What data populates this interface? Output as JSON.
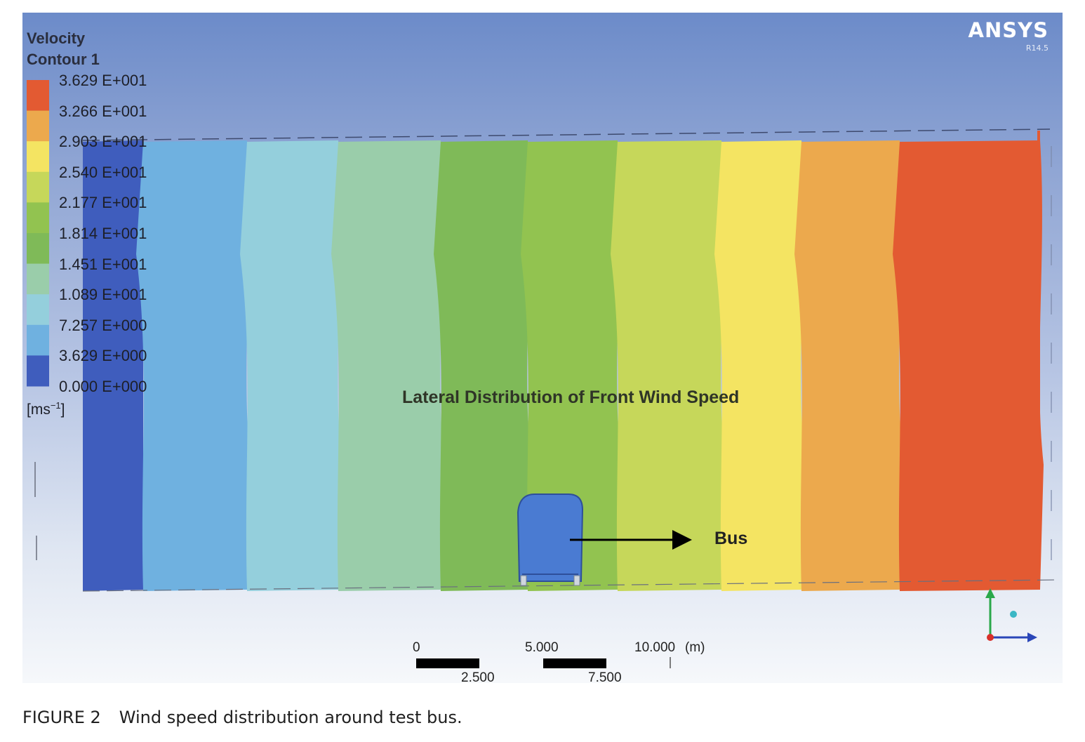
{
  "legend": {
    "title_line1": "Velocity",
    "title_line2": "Contour 1",
    "labels": [
      "3.629 E+001",
      "3.266 E+001",
      "2.903 E+001",
      "2.540 E+001",
      "2.177 E+001",
      "1.814 E+001",
      "1.451 E+001",
      "1.089 E+001",
      "7.257 E+000",
      "3.629 E+000",
      "0.000 E+000"
    ],
    "unit_base": "[ms",
    "unit_exp": "−1",
    "unit_close": "]",
    "colors": [
      "#e35a32",
      "#eca94d",
      "#f4e462",
      "#c6d75a",
      "#92c350",
      "#7fba58",
      "#9acdaa",
      "#94cfdc",
      "#6fb1e0",
      "#3f5dbd"
    ]
  },
  "software": {
    "logo": "ANSYS",
    "version": "R14.5"
  },
  "annotations": {
    "title": "Lateral Distribution of Front Wind Speed",
    "bus_label": "Bus"
  },
  "scale_bar": {
    "ticks_top": [
      "0",
      "5.000",
      "10.000",
      "(m)"
    ],
    "ticks_bottom": [
      "2.500",
      "7.500"
    ]
  },
  "caption": {
    "figure_number": "FIGURE 2",
    "text": "Wind speed distribution around test bus."
  }
}
